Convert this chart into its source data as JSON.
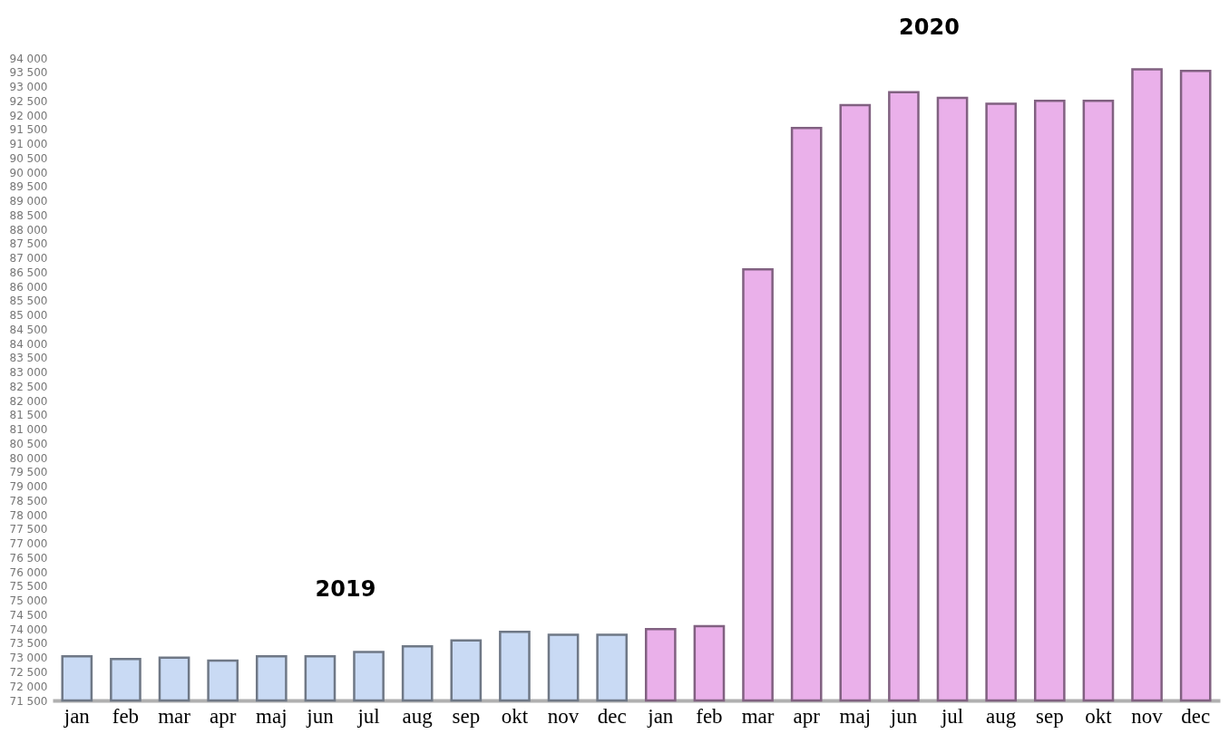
{
  "chart_data": {
    "type": "bar",
    "categories": [
      "jan",
      "feb",
      "mar",
      "apr",
      "maj",
      "jun",
      "jul",
      "aug",
      "sep",
      "okt",
      "nov",
      "dec",
      "jan",
      "feb",
      "mar",
      "apr",
      "maj",
      "jun",
      "jul",
      "aug",
      "sep",
      "okt",
      "nov",
      "dec"
    ],
    "values": [
      73050,
      72950,
      73000,
      72900,
      73050,
      73050,
      73200,
      73400,
      73600,
      73900,
      73800,
      73800,
      74000,
      74100,
      86600,
      91550,
      92350,
      92800,
      92600,
      92400,
      92500,
      92500,
      93600,
      93550
    ],
    "colors": [
      "#c9daf4",
      "#c9daf4",
      "#c9daf4",
      "#c9daf4",
      "#c9daf4",
      "#c9daf4",
      "#c9daf4",
      "#c9daf4",
      "#c9daf4",
      "#c9daf4",
      "#c9daf4",
      "#c9daf4",
      "#eab0ea",
      "#eab0ea",
      "#eab0ea",
      "#eab0ea",
      "#eab0ea",
      "#eab0ea",
      "#eab0ea",
      "#eab0ea",
      "#eab0ea",
      "#eab0ea",
      "#eab0ea",
      "#eab0ea"
    ],
    "ylim": [
      71500,
      94000
    ],
    "yticks": [
      71500,
      72000,
      72500,
      73000,
      73500,
      74000,
      74500,
      75000,
      75500,
      76000,
      76500,
      77000,
      77500,
      78000,
      78500,
      79000,
      79500,
      80000,
      80500,
      81000,
      81500,
      82000,
      82500,
      83000,
      83500,
      84000,
      84500,
      85000,
      85500,
      86000,
      86500,
      87000,
      87500,
      88000,
      88500,
      89000,
      89500,
      90000,
      90500,
      91000,
      91500,
      92000,
      92500,
      93000,
      93500,
      94000
    ],
    "annotations": [
      "2019",
      "2020"
    ],
    "grid": false
  }
}
